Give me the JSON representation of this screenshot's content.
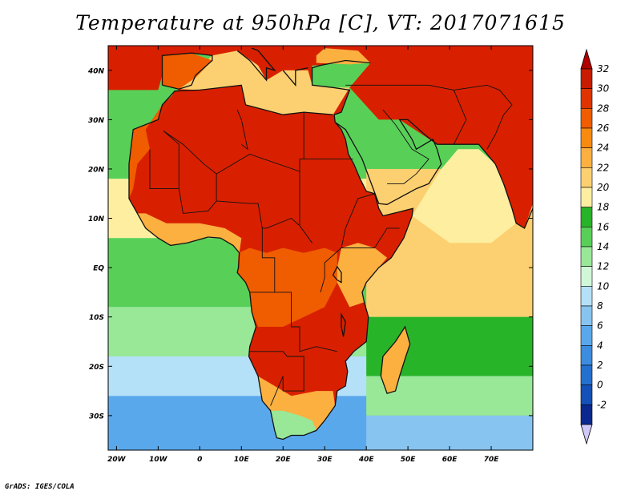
{
  "title": "Temperature at 950hPa [C], VT: 2017071615",
  "credit": "GrADS: IGES/COLA",
  "map": {
    "lon_range": [
      -22,
      80
    ],
    "lat_range": [
      -37,
      45
    ],
    "lat_labels": [
      {
        "lat": 40,
        "label": "40N"
      },
      {
        "lat": 30,
        "label": "30N"
      },
      {
        "lat": 20,
        "label": "20N"
      },
      {
        "lat": 10,
        "label": "10N"
      },
      {
        "lat": 0,
        "label": "EQ"
      },
      {
        "lat": -10,
        "label": "10S"
      },
      {
        "lat": -20,
        "label": "20S"
      },
      {
        "lat": -30,
        "label": "30S"
      }
    ],
    "lon_labels": [
      {
        "lon": -20,
        "label": "20W"
      },
      {
        "lon": -10,
        "label": "10W"
      },
      {
        "lon": 0,
        "label": "0"
      },
      {
        "lon": 10,
        "label": "10E"
      },
      {
        "lon": 20,
        "label": "20E"
      },
      {
        "lon": 30,
        "label": "30E"
      },
      {
        "lon": 40,
        "label": "40E"
      },
      {
        "lon": 50,
        "label": "50E"
      },
      {
        "lon": 60,
        "label": "60E"
      },
      {
        "lon": 70,
        "label": "70E"
      }
    ]
  },
  "colorbar": {
    "labels": [
      "32",
      "30",
      "28",
      "26",
      "24",
      "22",
      "20",
      "18",
      "16",
      "14",
      "12",
      "10",
      "8",
      "6",
      "4",
      "2",
      "0",
      "-2"
    ],
    "colors": [
      "#c81c00",
      "#e03400",
      "#f05c00",
      "#f88a10",
      "#fbb040",
      "#fcd070",
      "#fdeea0",
      "#28b428",
      "#58d058",
      "#98e898",
      "#d0f8d8",
      "#b4e0f8",
      "#88c4f0",
      "#5aa8ec",
      "#3c8ce0",
      "#2470d0",
      "#1450b8",
      "#0a2890"
    ],
    "top_arrow_color": "#b00000",
    "bottom_arrow_color": "#d0c8f8"
  },
  "field": {
    "ocean_bands": [
      {
        "lat_max": 45,
        "lat_min": 18,
        "color": "#58d058"
      },
      {
        "lat_max": 18,
        "lat_min": 6,
        "color": "#fdeea0"
      },
      {
        "lat_max": 6,
        "lat_min": -8,
        "color": "#58d058"
      },
      {
        "lat_max": -8,
        "lat_min": -18,
        "color": "#98e898"
      },
      {
        "lat_max": -18,
        "lat_min": -26,
        "color": "#b4e0f8"
      },
      {
        "lat_max": -26,
        "lat_min": -37,
        "color": "#5aa8ec"
      }
    ],
    "indian_bands": [
      {
        "lat_max": 20,
        "lat_min": -10,
        "color": "#fcd070"
      },
      {
        "lat_max": -10,
        "lat_min": -22,
        "color": "#28b428"
      },
      {
        "lat_max": -22,
        "lat_min": -30,
        "color": "#98e898"
      },
      {
        "lat_max": -30,
        "lat_min": -37,
        "color": "#88c4f0"
      }
    ],
    "hot_core_color": "#d82000",
    "warm_color": "#f05c00",
    "mild_color": "#fbb040",
    "med_color": "#fdeea0"
  }
}
